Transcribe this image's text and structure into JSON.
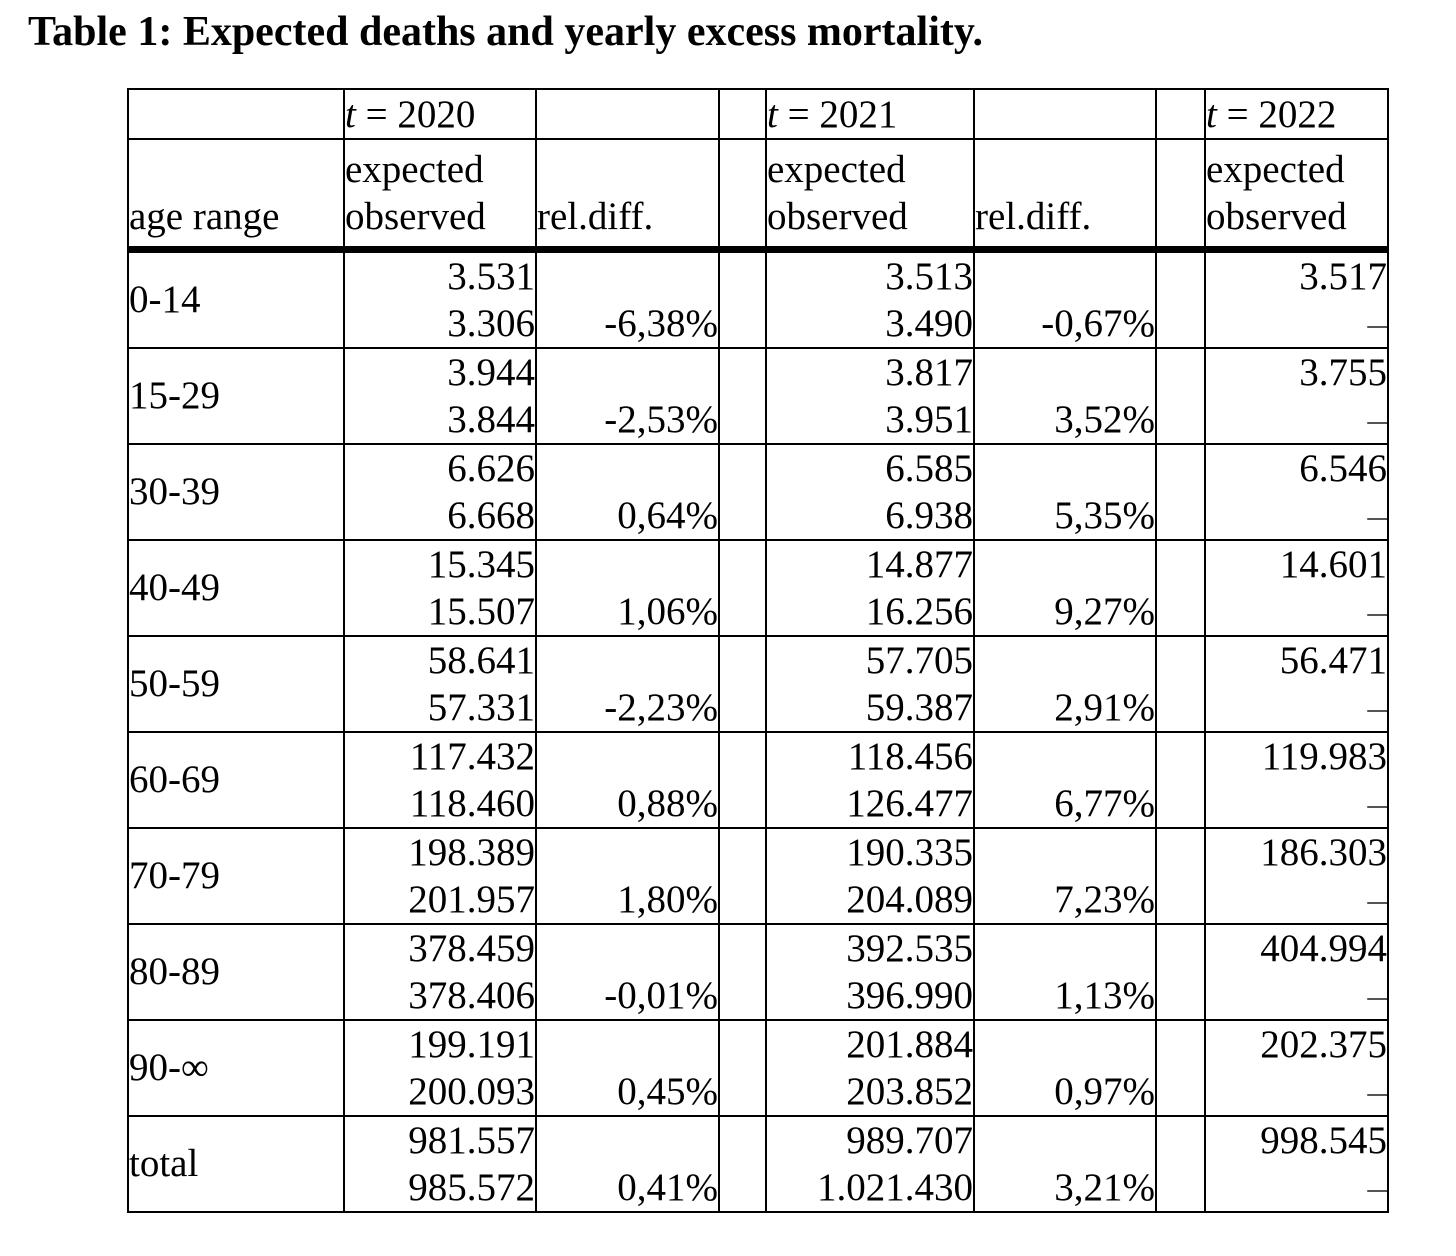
{
  "title": "Table 1: Expected deaths and yearly excess mortality.",
  "colors": {
    "text": "#000000",
    "border": "#000000",
    "background": "#ffffff",
    "no_data_dash": "#555555"
  },
  "table": {
    "year_headers": [
      {
        "t": "t",
        "eq": "= 2020"
      },
      {
        "t": "t",
        "eq": "= 2021"
      },
      {
        "t": "t",
        "eq": "= 2022"
      }
    ],
    "col_headers": {
      "age_range": "age range",
      "expected": "expected",
      "observed": "observed",
      "rel_diff": "rel.diff."
    },
    "rows": [
      {
        "age_range": "0-14",
        "y2020": {
          "expected": "3.531",
          "observed": "3.306",
          "rel_diff": "-6,38%"
        },
        "y2021": {
          "expected": "3.513",
          "observed": "3.490",
          "rel_diff": "-0,67%"
        },
        "y2022": {
          "expected": "3.517",
          "observed": "–"
        }
      },
      {
        "age_range": "15-29",
        "y2020": {
          "expected": "3.944",
          "observed": "3.844",
          "rel_diff": "-2,53%"
        },
        "y2021": {
          "expected": "3.817",
          "observed": "3.951",
          "rel_diff": "3,52%"
        },
        "y2022": {
          "expected": "3.755",
          "observed": "–"
        }
      },
      {
        "age_range": "30-39",
        "y2020": {
          "expected": "6.626",
          "observed": "6.668",
          "rel_diff": "0,64%"
        },
        "y2021": {
          "expected": "6.585",
          "observed": "6.938",
          "rel_diff": "5,35%"
        },
        "y2022": {
          "expected": "6.546",
          "observed": "–"
        }
      },
      {
        "age_range": "40-49",
        "y2020": {
          "expected": "15.345",
          "observed": "15.507",
          "rel_diff": "1,06%"
        },
        "y2021": {
          "expected": "14.877",
          "observed": "16.256",
          "rel_diff": "9,27%"
        },
        "y2022": {
          "expected": "14.601",
          "observed": "–"
        }
      },
      {
        "age_range": "50-59",
        "y2020": {
          "expected": "58.641",
          "observed": "57.331",
          "rel_diff": "-2,23%"
        },
        "y2021": {
          "expected": "57.705",
          "observed": "59.387",
          "rel_diff": "2,91%"
        },
        "y2022": {
          "expected": "56.471",
          "observed": "–"
        }
      },
      {
        "age_range": "60-69",
        "y2020": {
          "expected": "117.432",
          "observed": "118.460",
          "rel_diff": "0,88%"
        },
        "y2021": {
          "expected": "118.456",
          "observed": "126.477",
          "rel_diff": "6,77%"
        },
        "y2022": {
          "expected": "119.983",
          "observed": "–"
        }
      },
      {
        "age_range": "70-79",
        "y2020": {
          "expected": "198.389",
          "observed": "201.957",
          "rel_diff": "1,80%"
        },
        "y2021": {
          "expected": "190.335",
          "observed": "204.089",
          "rel_diff": "7,23%"
        },
        "y2022": {
          "expected": "186.303",
          "observed": "–"
        }
      },
      {
        "age_range": "80-89",
        "y2020": {
          "expected": "378.459",
          "observed": "378.406",
          "rel_diff": "-0,01%"
        },
        "y2021": {
          "expected": "392.535",
          "observed": "396.990",
          "rel_diff": "1,13%"
        },
        "y2022": {
          "expected": "404.994",
          "observed": "–"
        }
      },
      {
        "age_range": "90-∞",
        "y2020": {
          "expected": "199.191",
          "observed": "200.093",
          "rel_diff": "0,45%"
        },
        "y2021": {
          "expected": "201.884",
          "observed": "203.852",
          "rel_diff": "0,97%"
        },
        "y2022": {
          "expected": "202.375",
          "observed": "–"
        }
      },
      {
        "age_range": "total",
        "y2020": {
          "expected": "981.557",
          "observed": "985.572",
          "rel_diff": "0,41%"
        },
        "y2021": {
          "expected": "989.707",
          "observed": "1.021.430",
          "rel_diff": "3,21%"
        },
        "y2022": {
          "expected": "998.545",
          "observed": "–"
        }
      }
    ]
  }
}
